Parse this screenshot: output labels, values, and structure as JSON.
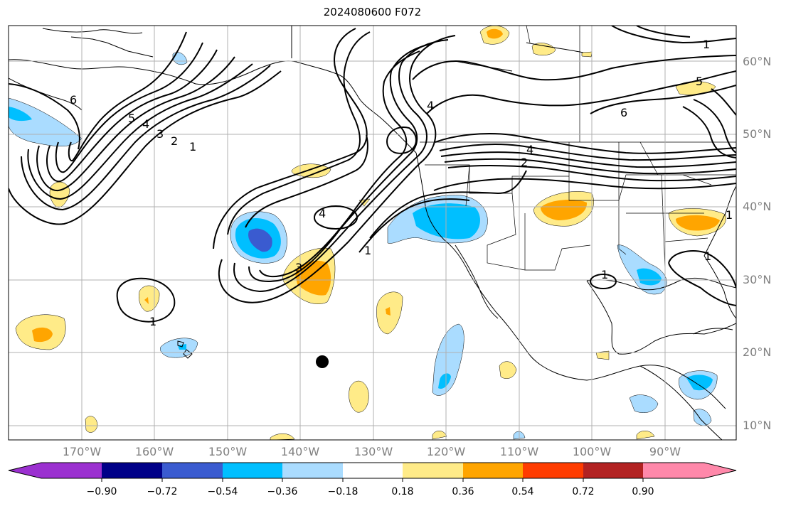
{
  "title": "2024080600 F072",
  "latitude_labels": [
    "60°N",
    "50°N",
    "40°N",
    "30°N",
    "20°N",
    "10°N"
  ],
  "longitude_labels": [
    "170°W",
    "160°W",
    "150°W",
    "140°W",
    "130°W",
    "120°W",
    "110°W",
    "100°W",
    "90°W"
  ],
  "colorbar": {
    "tick_labels": [
      "−0.90",
      "−0.72",
      "−0.54",
      "−0.36",
      "−0.18",
      "0.18",
      "0.36",
      "0.54",
      "0.72",
      "0.90"
    ],
    "colors": [
      "#9b30d0",
      "#000088",
      "#3a5bd0",
      "#00bfff",
      "#aadcff",
      "#ffffff",
      "#ffeb88",
      "#ffa500",
      "#ff3c00",
      "#b22222",
      "#ff88aa"
    ]
  },
  "contour_labels": [
    "1",
    "1",
    "1",
    "1",
    "1",
    "1",
    "2",
    "2",
    "3",
    "3",
    "4",
    "4",
    "4",
    "4",
    "5",
    "5",
    "6",
    "6",
    "1"
  ],
  "colors": {
    "contour": "#000000",
    "coastline": "#000000",
    "grid": "#b0b0b0",
    "marker": "#000000"
  }
}
